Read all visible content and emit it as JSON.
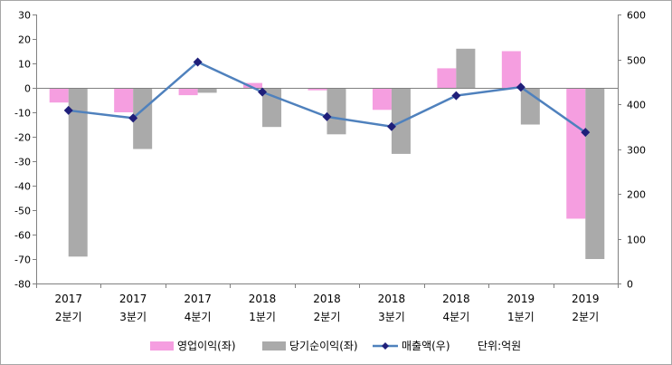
{
  "chart_data": {
    "type": "bar",
    "title": "",
    "unit_label": "단위:억원",
    "categories": [
      {
        "year": "2017",
        "quarter": "2분기"
      },
      {
        "year": "2017",
        "quarter": "3분기"
      },
      {
        "year": "2017",
        "quarter": "4분기"
      },
      {
        "year": "2018",
        "quarter": "1분기"
      },
      {
        "year": "2018",
        "quarter": "2분기"
      },
      {
        "year": "2018",
        "quarter": "3분기"
      },
      {
        "year": "2018",
        "quarter": "4분기"
      },
      {
        "year": "2019",
        "quarter": "1분기"
      },
      {
        "year": "2019",
        "quarter": "2분기"
      }
    ],
    "series": [
      {
        "name": "영업이익(좌)",
        "type": "bar",
        "axis": "left",
        "color": "#f59ee0",
        "values": [
          -6,
          -10,
          -3,
          2,
          -1,
          -9,
          8,
          15,
          -53.5
        ]
      },
      {
        "name": "당기순이익(좌)",
        "type": "bar",
        "axis": "left",
        "color": "#aaaaaa",
        "values": [
          -69,
          -25,
          -2,
          -16,
          -19,
          -27,
          16,
          -15,
          -70
        ]
      },
      {
        "name": "매출액(우)",
        "type": "line",
        "axis": "right",
        "color": "#4f81bd",
        "marker_color": "#1f1f7a",
        "values": [
          386,
          369,
          494,
          427,
          372,
          350,
          419,
          438,
          337
        ]
      }
    ],
    "left_axis": {
      "min": -80,
      "max": 30,
      "step": 10,
      "ticks": [
        "30",
        "20",
        "10",
        "0",
        "-10",
        "-20",
        "-30",
        "-40",
        "-50",
        "-60",
        "-70",
        "-80"
      ]
    },
    "right_axis": {
      "min": 0,
      "max": 600,
      "step": 100,
      "ticks": [
        "600",
        "500",
        "400",
        "300",
        "200",
        "100",
        "0"
      ]
    },
    "legend_position": "bottom",
    "grid": false
  }
}
